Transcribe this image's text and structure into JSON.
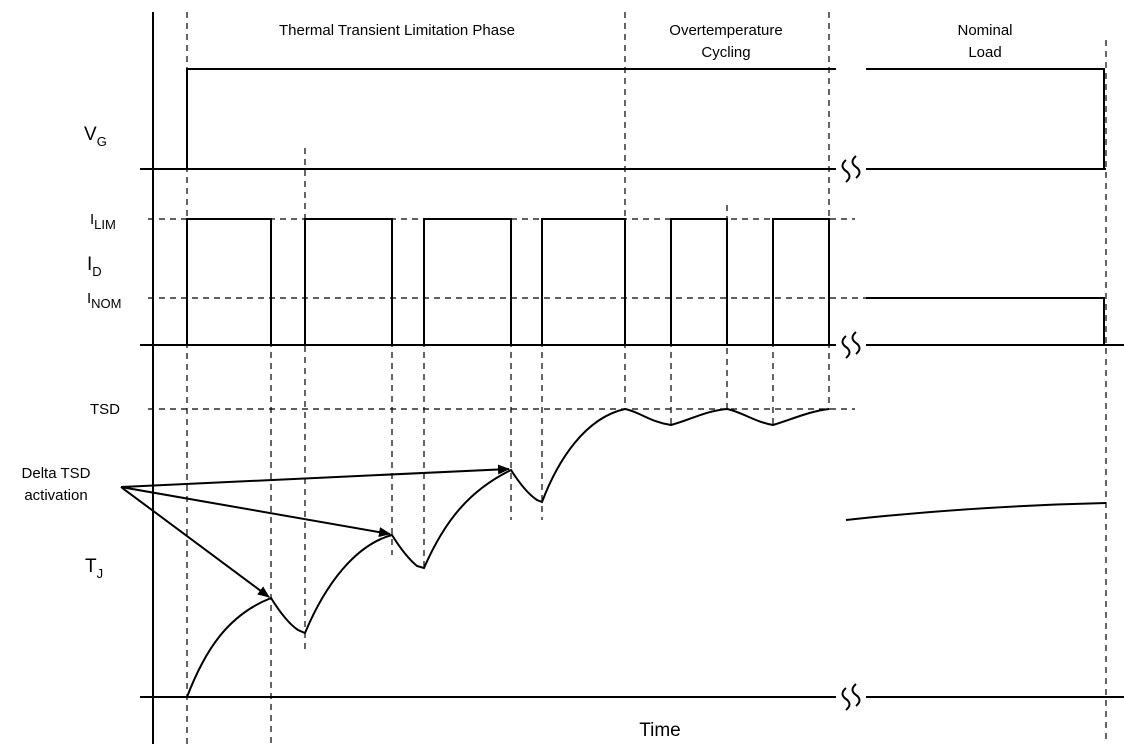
{
  "phases": {
    "thermal_transient": "Thermal Transient Limitation Phase",
    "overtemp_line1": "Overtemperature",
    "overtemp_line2": "Cycling",
    "nominal_line1": "Nominal",
    "nominal_line2": "Load"
  },
  "signals": {
    "vg": {
      "main": "V",
      "sub": "G"
    },
    "id": {
      "main": "I",
      "sub": "D"
    },
    "tj": {
      "main": "T",
      "sub": "J"
    }
  },
  "levels": {
    "ilim": {
      "main": "I",
      "sub": "LIM"
    },
    "inom": {
      "main": "I",
      "sub": "NOM"
    },
    "tsd": "TSD"
  },
  "annotation": {
    "line1": "Delta TSD",
    "line2": "activation"
  },
  "x_axis_label": "Time",
  "colors": {
    "stroke": "#000000",
    "background": "#ffffff"
  }
}
